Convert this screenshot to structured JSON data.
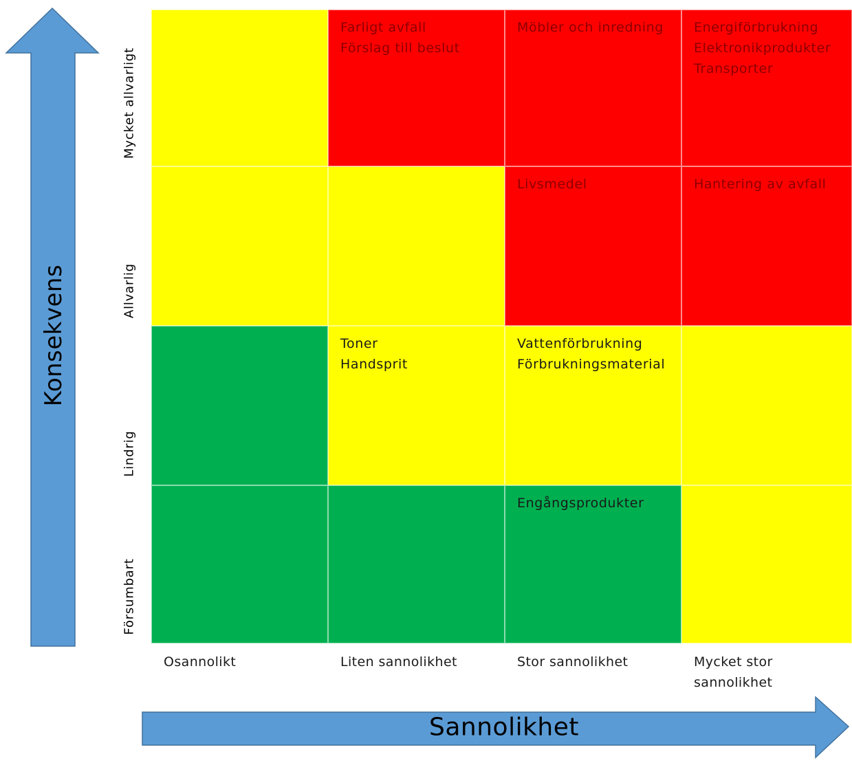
{
  "axes": {
    "y_title": "Konsekvens",
    "x_title": "Sannolikhet",
    "rows": [
      "Mycket allvarligt",
      "Allvarlig",
      "Lindrig",
      "Försumbart"
    ],
    "columns": [
      "Osannolikt",
      "Liten sannolikhet",
      "Stor sannolikhet",
      "Mycket stor sannolikhet"
    ]
  },
  "colors": {
    "red": "#ff0000",
    "yellow": "#ffff00",
    "green": "#00b050",
    "arrow": "#5b9bd5"
  },
  "matrix": [
    [
      {
        "color": "yellow",
        "items": []
      },
      {
        "color": "red",
        "items": [
          "Farligt avfall",
          "Förslag till beslut"
        ]
      },
      {
        "color": "red",
        "items": [
          "Möbler och inredning"
        ]
      },
      {
        "color": "red",
        "items": [
          "Energiförbrukning",
          "Elektronikprodukter",
          "Transporter"
        ]
      }
    ],
    [
      {
        "color": "yellow",
        "items": []
      },
      {
        "color": "yellow",
        "items": []
      },
      {
        "color": "red",
        "items": [
          "Livsmedel"
        ]
      },
      {
        "color": "red",
        "items": [
          "Hantering av avfall"
        ]
      }
    ],
    [
      {
        "color": "green",
        "items": []
      },
      {
        "color": "yellow",
        "items": [
          "Toner",
          "Handsprit"
        ]
      },
      {
        "color": "yellow",
        "items": [
          "Vattenförbrukning",
          "Förbrukningsmaterial"
        ]
      },
      {
        "color": "yellow",
        "items": []
      }
    ],
    [
      {
        "color": "green",
        "items": []
      },
      {
        "color": "green",
        "items": []
      },
      {
        "color": "green",
        "items": [
          "Engångsprodukter"
        ]
      },
      {
        "color": "yellow",
        "items": []
      }
    ]
  ]
}
